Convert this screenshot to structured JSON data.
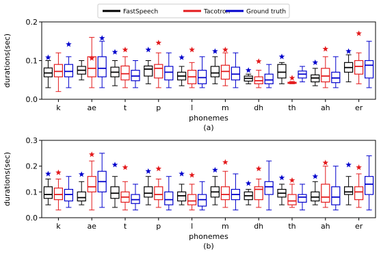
{
  "legend": [
    {
      "label": "FastSpeech",
      "color": "#000000"
    },
    {
      "label": "Tacotron",
      "color": "#e31a1c"
    },
    {
      "label": "Ground truth",
      "color": "#0000cc"
    }
  ],
  "chart_data": [
    {
      "type": "box",
      "caption": "(a)",
      "xlabel": "phonemes",
      "ylabel": "durations(sec)",
      "ylim": [
        0.0,
        0.2
      ],
      "yticks": [
        0.0,
        0.1,
        0.2
      ],
      "ytick_labels": [
        "0.0",
        "0.1",
        "0.2"
      ],
      "categories": [
        "k",
        "ae",
        "t",
        "p",
        "l",
        "m",
        "dh",
        "th",
        "ah",
        "er"
      ],
      "series": [
        {
          "name": "FastSpeech",
          "color": "#000000",
          "boxes": [
            {
              "whislo": 0.03,
              "q1": 0.058,
              "med": 0.068,
              "q3": 0.081,
              "whishi": 0.1
            },
            {
              "whislo": 0.05,
              "q1": 0.065,
              "med": 0.075,
              "q3": 0.085,
              "whishi": 0.1
            },
            {
              "whislo": 0.035,
              "q1": 0.058,
              "med": 0.07,
              "q3": 0.083,
              "whishi": 0.1
            },
            {
              "whislo": 0.04,
              "q1": 0.06,
              "med": 0.078,
              "q3": 0.086,
              "whishi": 0.1
            },
            {
              "whislo": 0.035,
              "q1": 0.05,
              "med": 0.06,
              "q3": 0.07,
              "whishi": 0.085
            },
            {
              "whislo": 0.04,
              "q1": 0.058,
              "med": 0.068,
              "q3": 0.085,
              "whishi": 0.11
            },
            {
              "whislo": 0.04,
              "q1": 0.047,
              "med": 0.054,
              "q3": 0.06,
              "whishi": 0.065
            },
            {
              "whislo": 0.04,
              "q1": 0.055,
              "med": 0.07,
              "q3": 0.09,
              "whishi": 0.095
            },
            {
              "whislo": 0.035,
              "q1": 0.045,
              "med": 0.055,
              "q3": 0.063,
              "whishi": 0.08
            },
            {
              "whislo": 0.045,
              "q1": 0.07,
              "med": 0.082,
              "q3": 0.095,
              "whishi": 0.115
            }
          ]
        },
        {
          "name": "Tacotron",
          "color": "#e31a1c",
          "boxes": [
            {
              "whislo": 0.02,
              "q1": 0.058,
              "med": 0.072,
              "q3": 0.09,
              "whishi": 0.12
            },
            {
              "whislo": 0.03,
              "q1": 0.058,
              "med": 0.08,
              "q3": 0.11,
              "whishi": 0.16
            },
            {
              "whislo": 0.03,
              "q1": 0.05,
              "med": 0.066,
              "q3": 0.086,
              "whishi": 0.11
            },
            {
              "whislo": 0.03,
              "q1": 0.055,
              "med": 0.08,
              "q3": 0.09,
              "whishi": 0.12
            },
            {
              "whislo": 0.03,
              "q1": 0.04,
              "med": 0.058,
              "q3": 0.075,
              "whishi": 0.095
            },
            {
              "whislo": 0.035,
              "q1": 0.052,
              "med": 0.072,
              "q3": 0.088,
              "whishi": 0.12
            },
            {
              "whislo": 0.03,
              "q1": 0.04,
              "med": 0.048,
              "q3": 0.058,
              "whishi": 0.075
            },
            {
              "whislo": 0.04,
              "q1": 0.041,
              "med": 0.042,
              "q3": 0.044,
              "whishi": 0.046
            },
            {
              "whislo": 0.03,
              "q1": 0.045,
              "med": 0.06,
              "q3": 0.08,
              "whishi": 0.11
            },
            {
              "whislo": 0.04,
              "q1": 0.065,
              "med": 0.085,
              "q3": 0.1,
              "whishi": 0.12
            }
          ]
        },
        {
          "name": "Ground truth",
          "color": "#0000cc",
          "boxes": [
            {
              "whislo": 0.03,
              "q1": 0.058,
              "med": 0.072,
              "q3": 0.09,
              "whishi": 0.11
            },
            {
              "whislo": 0.03,
              "q1": 0.058,
              "med": 0.08,
              "q3": 0.11,
              "whishi": 0.15
            },
            {
              "whislo": 0.03,
              "q1": 0.048,
              "med": 0.06,
              "q3": 0.075,
              "whishi": 0.1
            },
            {
              "whislo": 0.03,
              "q1": 0.05,
              "med": 0.07,
              "q3": 0.085,
              "whishi": 0.12
            },
            {
              "whislo": 0.03,
              "q1": 0.04,
              "med": 0.056,
              "q3": 0.075,
              "whishi": 0.11
            },
            {
              "whislo": 0.03,
              "q1": 0.05,
              "med": 0.065,
              "q3": 0.083,
              "whishi": 0.12
            },
            {
              "whislo": 0.03,
              "q1": 0.04,
              "med": 0.05,
              "q3": 0.065,
              "whishi": 0.09
            },
            {
              "whislo": 0.045,
              "q1": 0.055,
              "med": 0.065,
              "q3": 0.073,
              "whishi": 0.085
            },
            {
              "whislo": 0.03,
              "q1": 0.043,
              "med": 0.055,
              "q3": 0.07,
              "whishi": 0.11
            },
            {
              "whislo": 0.03,
              "q1": 0.055,
              "med": 0.088,
              "q3": 0.1,
              "whishi": 0.15
            }
          ]
        }
      ],
      "outlier_markers": [
        {
          "category": "k",
          "series": "Ground truth",
          "value": 0.142
        },
        {
          "category": "ae",
          "series": "Tacotron",
          "value": 0.106
        },
        {
          "category": "ae",
          "series": "Ground truth",
          "value": 0.158
        },
        {
          "category": "t",
          "series": "FastSpeech",
          "value": 0.122
        },
        {
          "category": "t",
          "series": "Tacotron",
          "value": 0.128
        },
        {
          "category": "p",
          "series": "FastSpeech",
          "value": 0.128
        },
        {
          "category": "p",
          "series": "Tacotron",
          "value": 0.146
        },
        {
          "category": "l",
          "series": "FastSpeech",
          "value": 0.108
        },
        {
          "category": "l",
          "series": "Tacotron",
          "value": 0.128
        },
        {
          "category": "m",
          "series": "FastSpeech",
          "value": 0.124
        },
        {
          "category": "m",
          "series": "Tacotron",
          "value": 0.128
        },
        {
          "category": "dh",
          "series": "FastSpeech",
          "value": 0.075
        },
        {
          "category": "dh",
          "series": "Tacotron",
          "value": 0.098
        },
        {
          "category": "th",
          "series": "FastSpeech",
          "value": 0.11
        },
        {
          "category": "th",
          "series": "Tacotron",
          "value": 0.055
        },
        {
          "category": "ah",
          "series": "FastSpeech",
          "value": 0.095
        },
        {
          "category": "ah",
          "series": "Tacotron",
          "value": 0.13
        },
        {
          "category": "er",
          "series": "FastSpeech",
          "value": 0.124
        },
        {
          "category": "er",
          "series": "Tacotron",
          "value": 0.17
        },
        {
          "category": "k",
          "series": "FastSpeech",
          "value": 0.108
        }
      ]
    },
    {
      "type": "box",
      "caption": "(b)",
      "xlabel": "phonemes",
      "ylabel": "durations(sec)",
      "ylim": [
        0.0,
        0.3
      ],
      "yticks": [
        0.0,
        0.1,
        0.2,
        0.3
      ],
      "ytick_labels": [
        "0.0",
        "0.1",
        "0.2",
        "0.3"
      ],
      "categories": [
        "k",
        "ae",
        "t",
        "p",
        "l",
        "m",
        "dh",
        "th",
        "ah",
        "er"
      ],
      "series": [
        {
          "name": "FastSpeech",
          "color": "#000000",
          "boxes": [
            {
              "whislo": 0.05,
              "q1": 0.075,
              "med": 0.09,
              "q3": 0.12,
              "whishi": 0.15
            },
            {
              "whislo": 0.05,
              "q1": 0.065,
              "med": 0.078,
              "q3": 0.1,
              "whishi": 0.14
            },
            {
              "whislo": 0.04,
              "q1": 0.075,
              "med": 0.095,
              "q3": 0.12,
              "whishi": 0.16
            },
            {
              "whislo": 0.05,
              "q1": 0.08,
              "med": 0.095,
              "q3": 0.12,
              "whishi": 0.16
            },
            {
              "whislo": 0.05,
              "q1": 0.065,
              "med": 0.085,
              "q3": 0.1,
              "whishi": 0.13
            },
            {
              "whislo": 0.05,
              "q1": 0.08,
              "med": 0.1,
              "q3": 0.12,
              "whishi": 0.16
            },
            {
              "whislo": 0.05,
              "q1": 0.07,
              "med": 0.085,
              "q3": 0.1,
              "whishi": 0.11
            },
            {
              "whislo": 0.05,
              "q1": 0.08,
              "med": 0.095,
              "q3": 0.11,
              "whishi": 0.13
            },
            {
              "whislo": 0.05,
              "q1": 0.065,
              "med": 0.08,
              "q3": 0.1,
              "whishi": 0.14
            },
            {
              "whislo": 0.05,
              "q1": 0.09,
              "med": 0.1,
              "q3": 0.12,
              "whishi": 0.16
            }
          ]
        },
        {
          "name": "Tacotron",
          "color": "#e31a1c",
          "boxes": [
            {
              "whislo": 0.03,
              "q1": 0.07,
              "med": 0.09,
              "q3": 0.115,
              "whishi": 0.15
            },
            {
              "whislo": 0.03,
              "q1": 0.1,
              "med": 0.12,
              "q3": 0.16,
              "whishi": 0.22
            },
            {
              "whislo": 0.03,
              "q1": 0.06,
              "med": 0.08,
              "q3": 0.1,
              "whishi": 0.14
            },
            {
              "whislo": 0.04,
              "q1": 0.07,
              "med": 0.09,
              "q3": 0.12,
              "whishi": 0.15
            },
            {
              "whislo": 0.03,
              "q1": 0.05,
              "med": 0.065,
              "q3": 0.09,
              "whishi": 0.13
            },
            {
              "whislo": 0.04,
              "q1": 0.07,
              "med": 0.09,
              "q3": 0.12,
              "whishi": 0.18
            },
            {
              "whislo": 0.04,
              "q1": 0.07,
              "med": 0.11,
              "q3": 0.12,
              "whishi": 0.15
            },
            {
              "whislo": 0.04,
              "q1": 0.05,
              "med": 0.065,
              "q3": 0.09,
              "whishi": 0.13
            },
            {
              "whislo": 0.04,
              "q1": 0.06,
              "med": 0.08,
              "q3": 0.13,
              "whishi": 0.2
            },
            {
              "whislo": 0.04,
              "q1": 0.07,
              "med": 0.1,
              "q3": 0.12,
              "whishi": 0.17
            }
          ]
        },
        {
          "name": "Ground truth",
          "color": "#0000cc",
          "boxes": [
            {
              "whislo": 0.04,
              "q1": 0.065,
              "med": 0.09,
              "q3": 0.11,
              "whishi": 0.16
            },
            {
              "whislo": 0.04,
              "q1": 0.1,
              "med": 0.14,
              "q3": 0.18,
              "whishi": 0.25
            },
            {
              "whislo": 0.03,
              "q1": 0.055,
              "med": 0.07,
              "q3": 0.09,
              "whishi": 0.13
            },
            {
              "whislo": 0.03,
              "q1": 0.05,
              "med": 0.07,
              "q3": 0.1,
              "whishi": 0.16
            },
            {
              "whislo": 0.03,
              "q1": 0.045,
              "med": 0.07,
              "q3": 0.09,
              "whishi": 0.14
            },
            {
              "whislo": 0.03,
              "q1": 0.07,
              "med": 0.09,
              "q3": 0.11,
              "whishi": 0.17
            },
            {
              "whislo": 0.03,
              "q1": 0.09,
              "med": 0.12,
              "q3": 0.14,
              "whishi": 0.22
            },
            {
              "whislo": 0.03,
              "q1": 0.06,
              "med": 0.08,
              "q3": 0.09,
              "whishi": 0.13
            },
            {
              "whislo": 0.03,
              "q1": 0.05,
              "med": 0.08,
              "q3": 0.12,
              "whishi": 0.2
            },
            {
              "whislo": 0.03,
              "q1": 0.09,
              "med": 0.13,
              "q3": 0.16,
              "whishi": 0.24
            }
          ]
        }
      ],
      "outlier_markers": [
        {
          "category": "k",
          "series": "FastSpeech",
          "value": 0.17
        },
        {
          "category": "k",
          "series": "Tacotron",
          "value": 0.175
        },
        {
          "category": "ae",
          "series": "FastSpeech",
          "value": 0.168
        },
        {
          "category": "ae",
          "series": "Tacotron",
          "value": 0.245
        },
        {
          "category": "t",
          "series": "FastSpeech",
          "value": 0.205
        },
        {
          "category": "t",
          "series": "Tacotron",
          "value": 0.195
        },
        {
          "category": "p",
          "series": "FastSpeech",
          "value": 0.18
        },
        {
          "category": "p",
          "series": "Tacotron",
          "value": 0.19
        },
        {
          "category": "l",
          "series": "FastSpeech",
          "value": 0.17
        },
        {
          "category": "l",
          "series": "Tacotron",
          "value": 0.165
        },
        {
          "category": "m",
          "series": "FastSpeech",
          "value": 0.185
        },
        {
          "category": "m",
          "series": "Tacotron",
          "value": 0.215
        },
        {
          "category": "dh",
          "series": "FastSpeech",
          "value": 0.133
        },
        {
          "category": "dh",
          "series": "Tacotron",
          "value": 0.19
        },
        {
          "category": "th",
          "series": "FastSpeech",
          "value": 0.155
        },
        {
          "category": "th",
          "series": "Tacotron",
          "value": 0.145
        },
        {
          "category": "ah",
          "series": "FastSpeech",
          "value": 0.16
        },
        {
          "category": "ah",
          "series": "Tacotron",
          "value": 0.213
        },
        {
          "category": "er",
          "series": "FastSpeech",
          "value": 0.205
        },
        {
          "category": "er",
          "series": "Tacotron",
          "value": 0.195
        }
      ]
    }
  ]
}
